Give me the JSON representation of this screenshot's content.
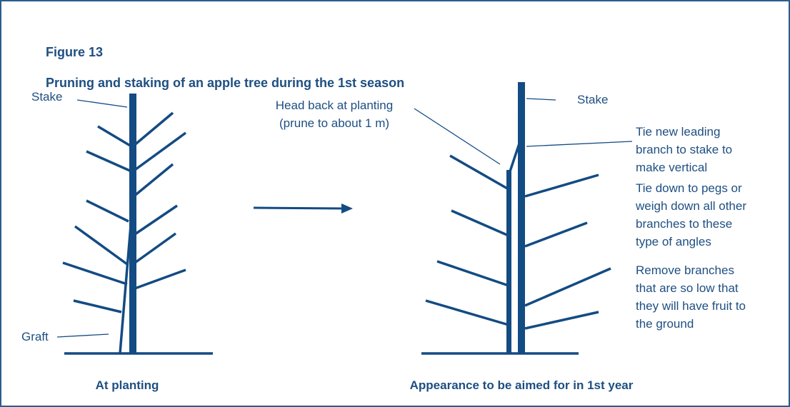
{
  "header": {
    "figure": "Figure 13",
    "title": "Pruning and staking of an apple tree during the 1st season"
  },
  "left_tree": {
    "labels": {
      "stake": "Stake",
      "graft": "Graft"
    },
    "caption": "At planting"
  },
  "right_tree": {
    "labels": {
      "head_back": [
        "Head back at planting",
        "(prune to about 1 m)"
      ],
      "stake": "Stake",
      "tie_leader": [
        "Tie new leading",
        "branch to stake to",
        "make vertical"
      ],
      "tie_down": [
        "Tie down to pegs or",
        "weigh down all other",
        "branches to these",
        "type of angles"
      ],
      "remove_low": [
        "Remove branches",
        "that are so low that",
        "they will have fruit to",
        "the ground"
      ]
    },
    "caption": "Appearance to be aimed for in 1st year"
  }
}
